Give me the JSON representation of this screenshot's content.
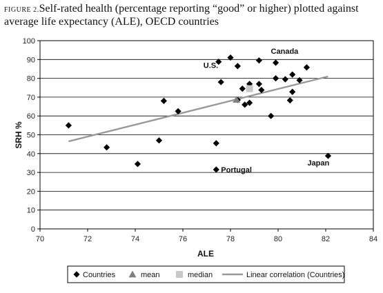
{
  "chart_data": {
    "type": "scatter",
    "title_prefix": "FIGURE 2.",
    "title": "Self-rated health (percentage reporting “good” or higher) plotted against average life expectancy (ALE), OECD countries",
    "xlabel": "ALE",
    "ylabel": "SRH %",
    "xlim": [
      70,
      84
    ],
    "ylim": [
      0,
      100
    ],
    "xticks": [
      70,
      72,
      74,
      76,
      78,
      80,
      82,
      84
    ],
    "yticks": [
      0,
      10,
      20,
      30,
      40,
      50,
      60,
      70,
      80,
      90,
      100
    ],
    "grid": "horizontal",
    "legend_position": "bottom",
    "series": [
      {
        "name": "Countries",
        "marker": "diamond",
        "color": "#000000",
        "points": [
          {
            "x": 71.2,
            "y": 55
          },
          {
            "x": 72.8,
            "y": 43.3
          },
          {
            "x": 74.1,
            "y": 34.5
          },
          {
            "x": 75.0,
            "y": 47
          },
          {
            "x": 75.2,
            "y": 68
          },
          {
            "x": 75.8,
            "y": 62.5
          },
          {
            "x": 77.4,
            "y": 45.5
          },
          {
            "x": 77.4,
            "y": 31.5,
            "label": "Portugal"
          },
          {
            "x": 77.5,
            "y": 88.8,
            "label": "U.S."
          },
          {
            "x": 77.6,
            "y": 78
          },
          {
            "x": 78.0,
            "y": 91
          },
          {
            "x": 78.3,
            "y": 86.5
          },
          {
            "x": 78.3,
            "y": 68.5
          },
          {
            "x": 78.5,
            "y": 74.5
          },
          {
            "x": 78.6,
            "y": 66
          },
          {
            "x": 78.8,
            "y": 77
          },
          {
            "x": 78.8,
            "y": 67
          },
          {
            "x": 79.2,
            "y": 89.5
          },
          {
            "x": 79.2,
            "y": 77
          },
          {
            "x": 79.3,
            "y": 73.8
          },
          {
            "x": 79.7,
            "y": 60
          },
          {
            "x": 79.9,
            "y": 88.3,
            "label": "Canada"
          },
          {
            "x": 79.9,
            "y": 80
          },
          {
            "x": 80.3,
            "y": 79.5
          },
          {
            "x": 80.5,
            "y": 68.3
          },
          {
            "x": 80.6,
            "y": 82
          },
          {
            "x": 80.6,
            "y": 72.8
          },
          {
            "x": 80.9,
            "y": 79
          },
          {
            "x": 81.2,
            "y": 85.8
          },
          {
            "x": 82.1,
            "y": 38.8,
            "label": "Japan"
          }
        ]
      },
      {
        "name": "mean",
        "marker": "triangle",
        "color": "#808080",
        "points": [
          {
            "x": 78.25,
            "y": 68.7
          }
        ]
      },
      {
        "name": "median",
        "marker": "square",
        "color": "#c8c8c8",
        "points": [
          {
            "x": 78.8,
            "y": 74.5
          }
        ]
      },
      {
        "name": "Linear correlation (Countries)",
        "marker": "line",
        "color": "#999999",
        "line": [
          {
            "x": 71.2,
            "y": 46.5
          },
          {
            "x": 82.1,
            "y": 81
          }
        ]
      }
    ]
  }
}
